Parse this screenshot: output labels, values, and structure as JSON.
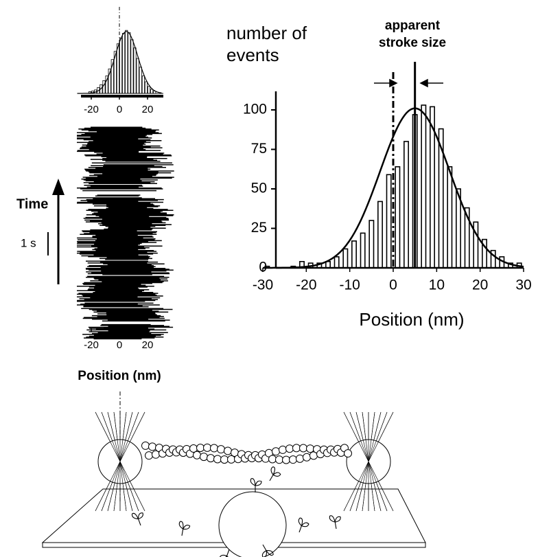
{
  "chart_data": [
    {
      "type": "bar",
      "ylabel_lines": [
        "number of",
        "events"
      ],
      "annotation_lines": [
        "apparent",
        "stroke size"
      ],
      "xlabel": "Position (nm)",
      "x": [
        -29,
        -23,
        -21,
        -19,
        -17,
        -15,
        -13,
        -11,
        -9,
        -7,
        -5,
        -3,
        -1,
        1,
        3,
        5,
        7,
        9,
        11,
        13,
        15,
        17,
        19,
        21,
        23,
        25,
        27,
        29
      ],
      "values": [
        1,
        1,
        4,
        3,
        3,
        4,
        7,
        12,
        17,
        22,
        30,
        42,
        59,
        64,
        80,
        97,
        103,
        102,
        88,
        64,
        50,
        38,
        29,
        18,
        11,
        7,
        3,
        3
      ],
      "bin_width": 2,
      "color": "#ffffff",
      "edge_color": "#000000",
      "xlim": [
        -30,
        30
      ],
      "ylim": [
        0,
        112
      ],
      "xticks": [
        -30,
        -20,
        -10,
        0,
        10,
        20,
        30
      ],
      "yticks": [
        0,
        25,
        50,
        75,
        100
      ],
      "fit": {
        "mean": 5,
        "sd": 8,
        "peak": 101
      },
      "reference_lines": [
        {
          "x": 0,
          "style": "dashdot"
        },
        {
          "x": 5,
          "style": "solid"
        }
      ]
    },
    {
      "type": "bar",
      "x": [
        -21,
        -19,
        -17,
        -15,
        -13,
        -11,
        -9,
        -7,
        -5,
        -3,
        -1,
        1,
        3,
        5,
        7,
        9,
        11,
        13,
        15,
        17,
        19,
        21,
        23,
        25
      ],
      "values": [
        3,
        4,
        6,
        10,
        15,
        22,
        30,
        42,
        58,
        72,
        85,
        95,
        103,
        108,
        104,
        92,
        78,
        60,
        45,
        30,
        20,
        12,
        7,
        4
      ],
      "bin_width": 2,
      "color": "#ffffff",
      "edge_color": "#000000",
      "xlim": [
        -30,
        30
      ],
      "ylim": [
        0,
        110
      ],
      "xticks": [
        -20,
        0,
        20
      ],
      "fit": {
        "mean": 5,
        "sd": 8,
        "peak": 106
      },
      "reference_lines": [
        {
          "x": 0,
          "style": "dashdot"
        }
      ]
    },
    {
      "type": "trace",
      "xlim": [
        -30,
        30
      ],
      "xticks": [
        -20,
        0,
        20
      ],
      "xlabel": "Position (nm)",
      "time_label": "Time",
      "scale_label": "1 s"
    }
  ]
}
